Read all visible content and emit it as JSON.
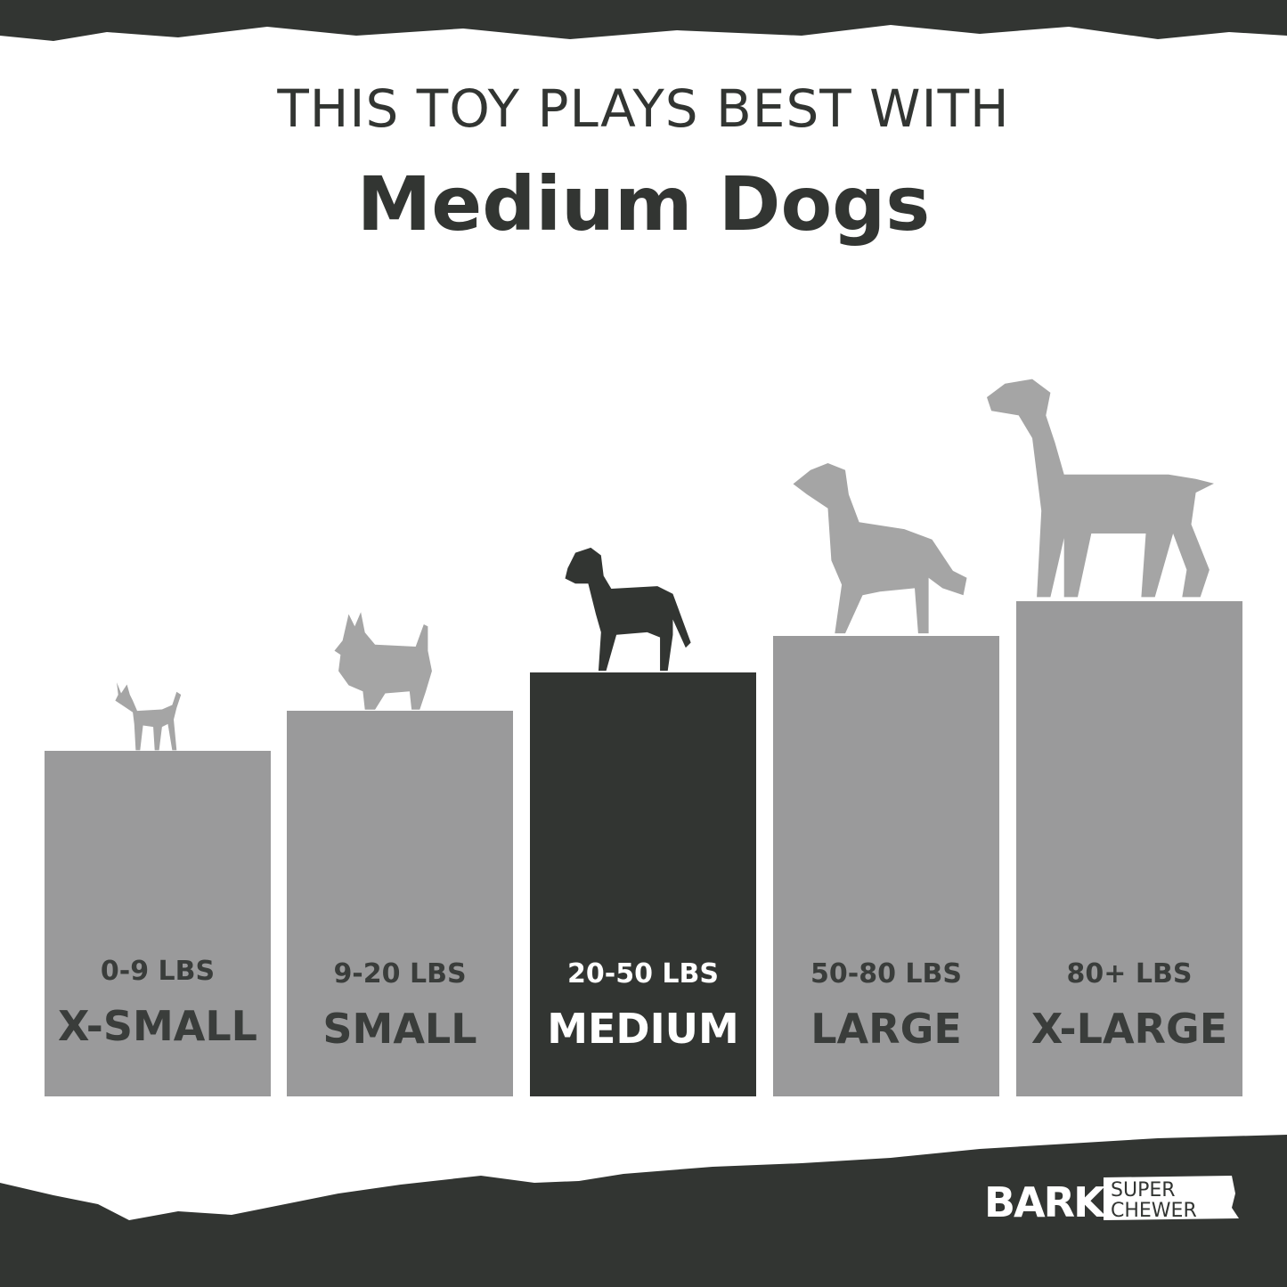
{
  "header": {
    "line1": "THIS TOY PLAYS BEST WITH",
    "line2": "Medium Dogs"
  },
  "sizes": [
    {
      "weight": "0-9 LBS",
      "label": "X-SMALL",
      "active": false
    },
    {
      "weight": "9-20 LBS",
      "label": "SMALL",
      "active": false
    },
    {
      "weight": "20-50 LBS",
      "label": "MEDIUM",
      "active": true
    },
    {
      "weight": "50-80 LBS",
      "label": "LARGE",
      "active": false
    },
    {
      "weight": "80+ LBS",
      "label": "X-LARGE",
      "active": false
    }
  ],
  "logo": {
    "brand": "BARK",
    "line1": "SUPER",
    "line2": "CHEWER"
  },
  "colors": {
    "dark": "#323532",
    "bar": "#9a9a9b",
    "dog": "#a5a5a5",
    "background": "#ffffff"
  }
}
